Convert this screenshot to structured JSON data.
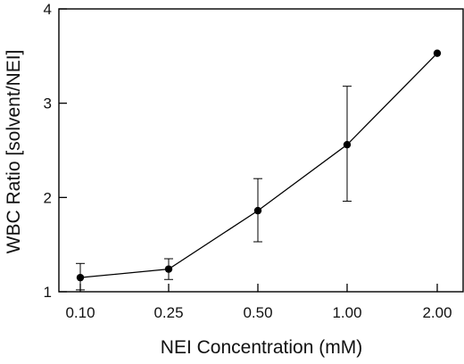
{
  "chart_data": {
    "type": "line",
    "title": "",
    "xlabel": "NEI Concentration (mM)",
    "ylabel": "WBC Ratio [solvent/NEI]",
    "categories": [
      "0.10",
      "0.25",
      "0.50",
      "1.00",
      "2.00"
    ],
    "series": [
      {
        "values": [
          1.15,
          1.24,
          1.86,
          2.56,
          3.53
        ],
        "error_upper": [
          1.3,
          1.35,
          2.2,
          3.18,
          3.53
        ],
        "error_lower": [
          1.02,
          1.13,
          1.53,
          1.96,
          3.53
        ]
      }
    ],
    "ylim": [
      1,
      4
    ],
    "yticks": [
      "1",
      "2",
      "3",
      "4"
    ],
    "grid": false,
    "legend": "none",
    "colors": {
      "line": "#000000",
      "marker": "#000000"
    }
  }
}
